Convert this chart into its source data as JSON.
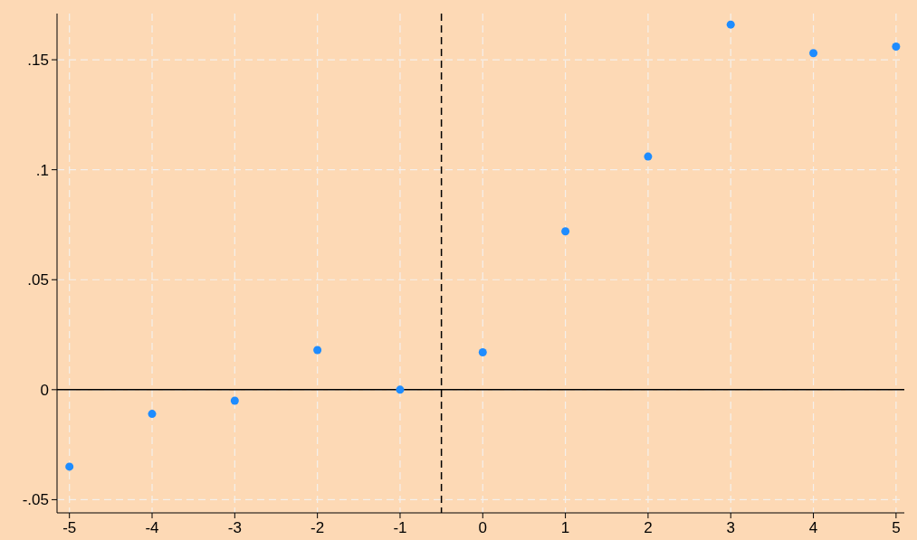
{
  "chart_data": {
    "type": "scatter",
    "x": [
      -5,
      -4,
      -3,
      -2,
      -1,
      0,
      1,
      2,
      3,
      4,
      5
    ],
    "series": [
      {
        "color": "#1e8cff",
        "values": [
          -0.035,
          -0.011,
          -0.005,
          0.018,
          0,
          0.017,
          0.072,
          0.106,
          0.166,
          0.153,
          0.156
        ]
      }
    ],
    "xlim": [
      -5.15,
      5.1
    ],
    "ylim": [
      -0.056,
      0.171
    ],
    "xticks": [
      -5,
      -4,
      -3,
      -2,
      -1,
      0,
      1,
      2,
      3,
      4,
      5
    ],
    "yticks": [
      {
        "value": -0.05,
        "label": "-.05"
      },
      0,
      {
        "value": 0.05,
        "label": ".05"
      },
      {
        "value": 0.1,
        "label": ".1"
      },
      {
        "value": 0.15,
        "label": ".15"
      }
    ],
    "ref_lines": [
      {
        "axis": "x",
        "value": -0.5,
        "color": "#000000",
        "line_style": "dashed"
      },
      {
        "axis": "y",
        "value": 0,
        "color": "#000000",
        "line_style": "solid"
      }
    ],
    "grid": true,
    "marker": "circle"
  }
}
